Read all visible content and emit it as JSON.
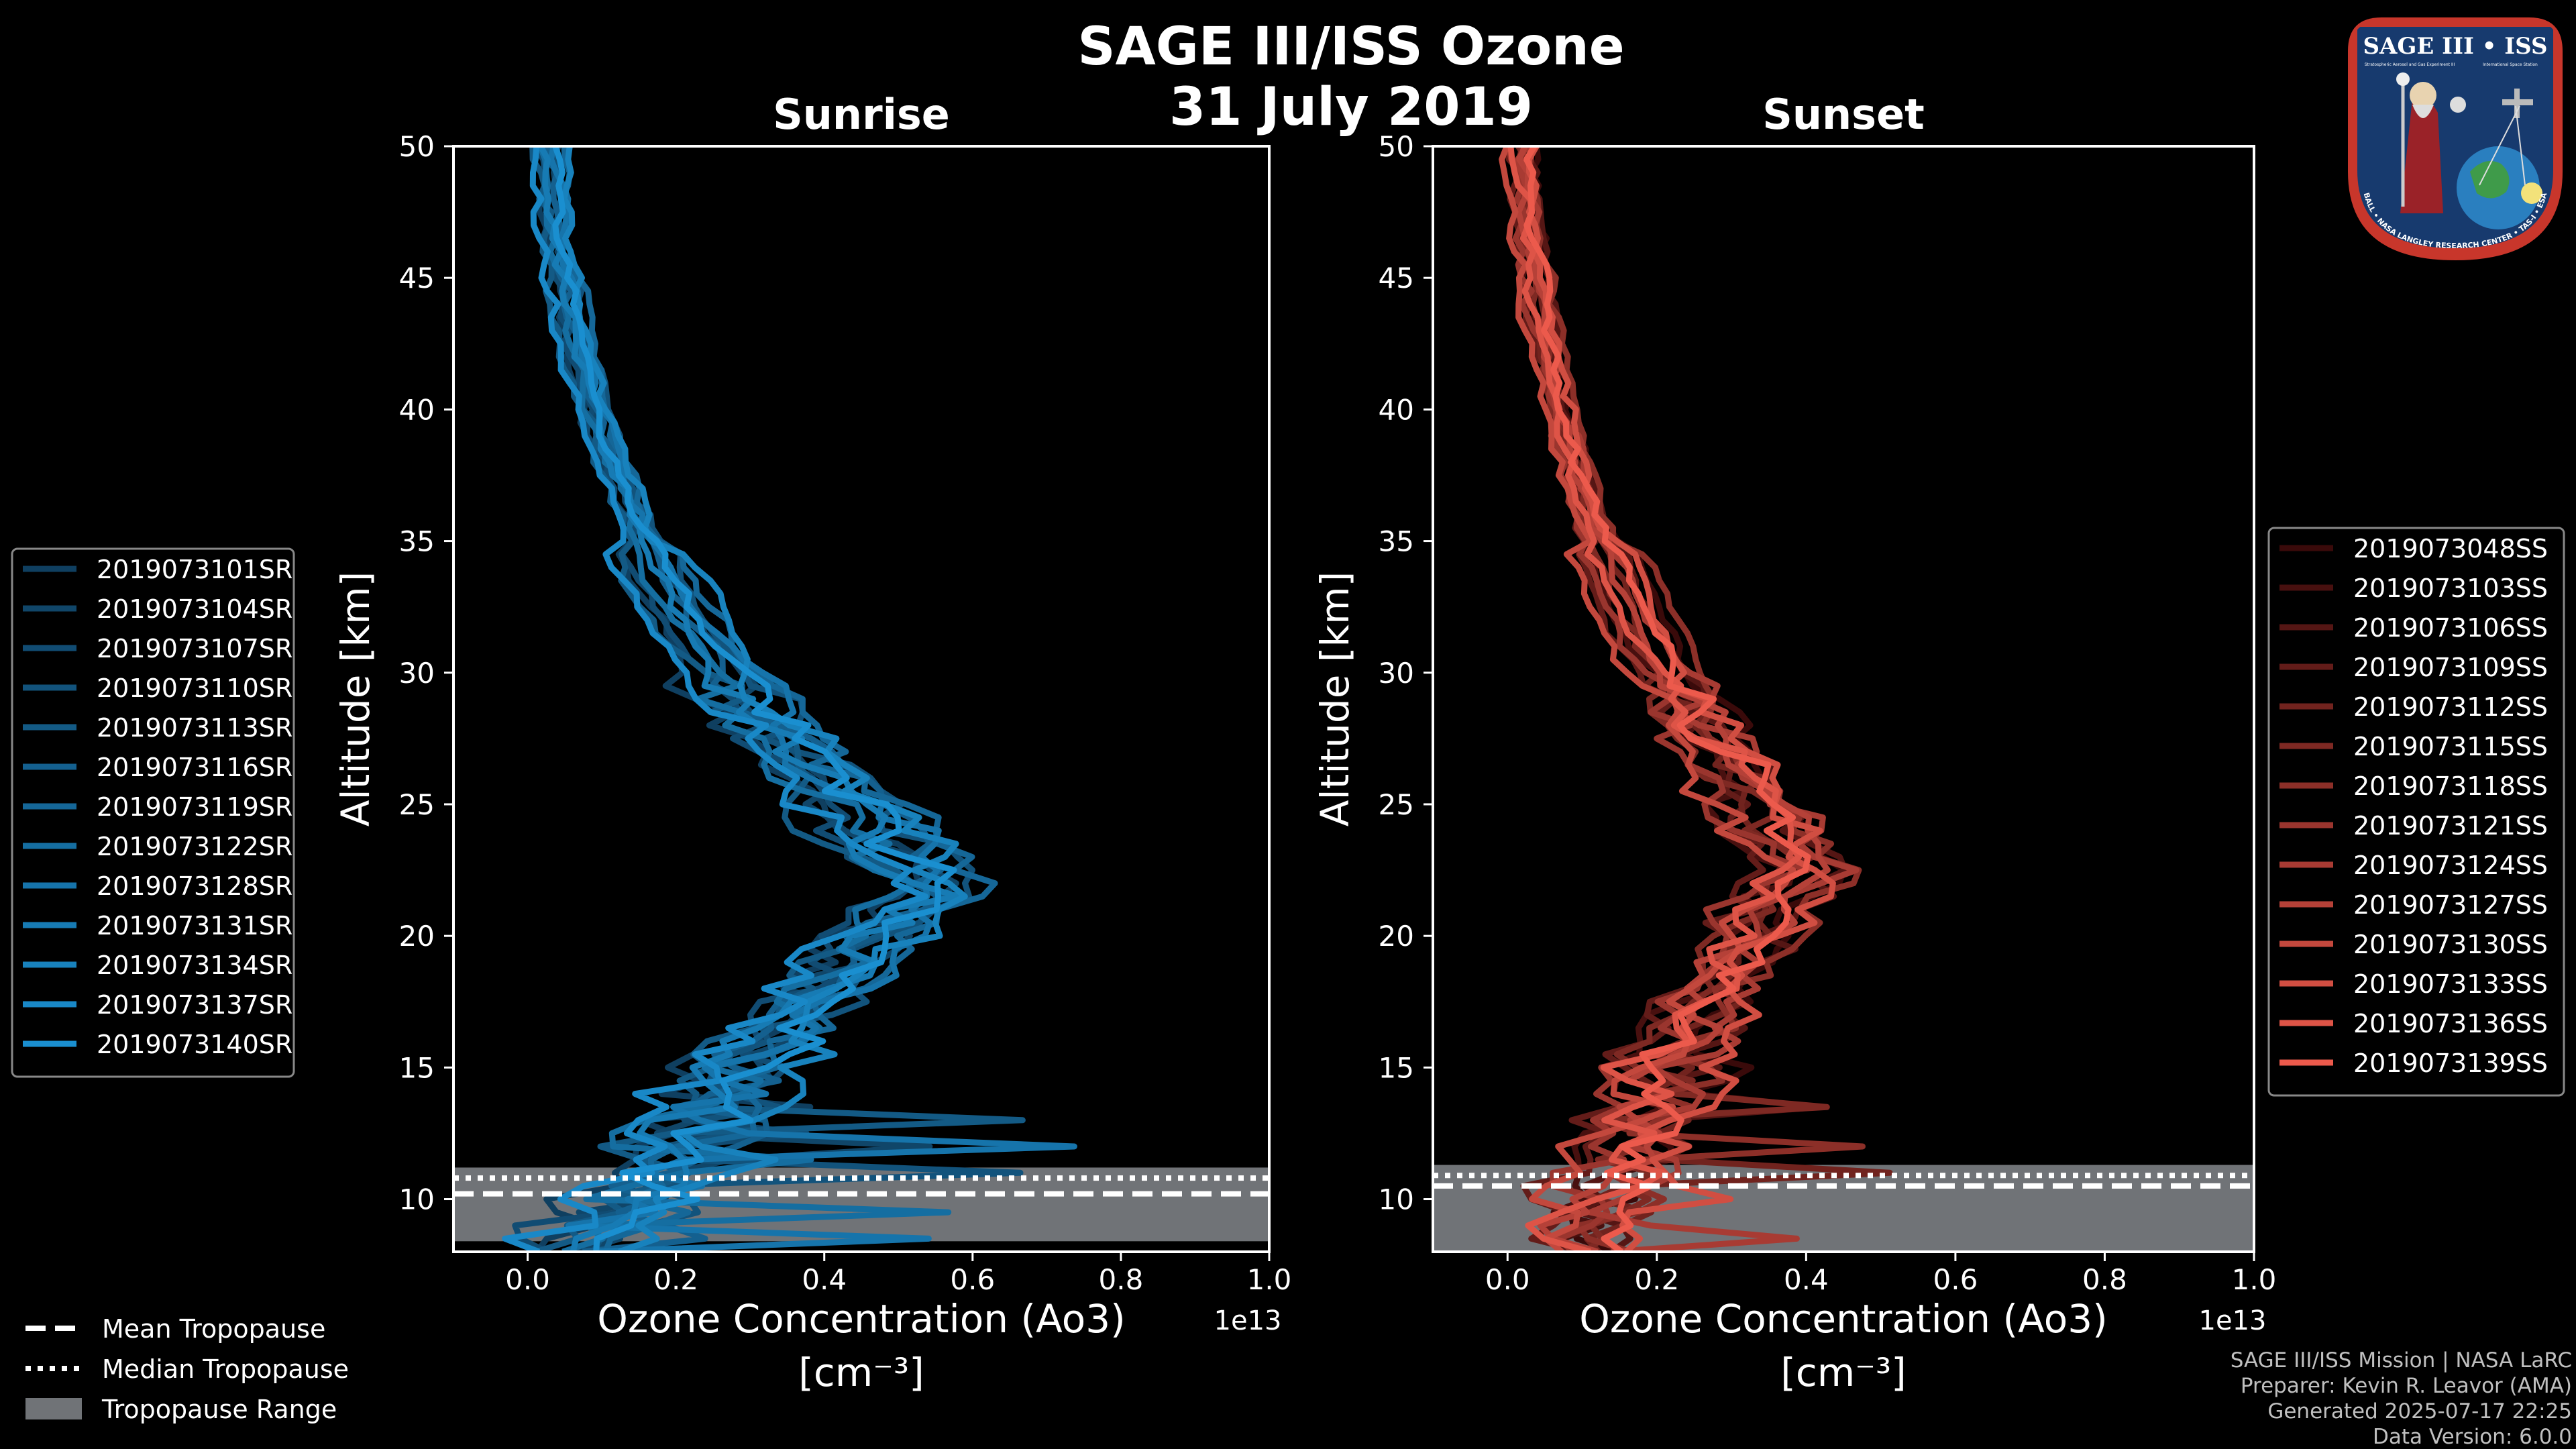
{
  "figure": {
    "title_line1": "SAGE III/ISS Ozone",
    "title_line2": "31 July 2019",
    "footer_lines": [
      "SAGE III/ISS Mission | NASA LaRC",
      "Preparer: Kevin R. Leavor (AMA)",
      "Generated 2025-07-17 22:25",
      "Data Version: 6.0.0"
    ],
    "bottom_legend": [
      {
        "label": "Mean Tropopause",
        "style": "dashed"
      },
      {
        "label": "Median Tropopause",
        "style": "dotted"
      },
      {
        "label": "Tropopause Range",
        "style": "patch"
      }
    ],
    "logo": {
      "top_text": "SAGE III • ISS",
      "sub_text_left": "Stratospheric Aerosol and Gas Experiment III",
      "sub_text_right": "International Space Station",
      "ring_text": "BALL • NASA LANGLEY RESEARCH CENTER • TAS-I • ESA"
    }
  },
  "chart_data": [
    {
      "type": "line",
      "title": "Sunrise",
      "xlabel_line1": "Ozone Concentration (Ao3)",
      "xlabel_line2": "[cm⁻³]",
      "ylabel": "Altitude [km]",
      "xlim": [
        -0.1,
        1.0
      ],
      "ylim": [
        8,
        50
      ],
      "x_scale_label": "1e13",
      "x_ticks": [
        "0.0",
        "0.2",
        "0.4",
        "0.6",
        "0.8",
        "1.0"
      ],
      "y_ticks": [
        "10",
        "15",
        "20",
        "25",
        "30",
        "35",
        "40",
        "45",
        "50"
      ],
      "tropopause": {
        "mean": 10.2,
        "median": 10.8,
        "range": [
          8.4,
          11.2
        ]
      },
      "color_dark": "#0f3f60",
      "color_light": "#1a8fd0",
      "series": [
        {
          "name": "2019073101SR",
          "shift": -0.04
        },
        {
          "name": "2019073104SR",
          "shift": 0.01
        },
        {
          "name": "2019073107SR",
          "shift": -0.03
        },
        {
          "name": "2019073110SR",
          "shift": 0.03
        },
        {
          "name": "2019073113SR",
          "shift": -0.05
        },
        {
          "name": "2019073116SR",
          "shift": 0.0
        },
        {
          "name": "2019073119SR",
          "shift": 0.04
        },
        {
          "name": "2019073122SR",
          "shift": -0.02
        },
        {
          "name": "2019073128SR",
          "shift": 0.02
        },
        {
          "name": "2019073131SR",
          "shift": -0.01
        },
        {
          "name": "2019073134SR",
          "shift": 0.05
        },
        {
          "name": "2019073137SR",
          "shift": -0.06
        },
        {
          "name": "2019073140SR",
          "shift": 0.015
        }
      ]
    },
    {
      "type": "line",
      "title": "Sunset",
      "xlabel_line1": "Ozone Concentration (Ao3)",
      "xlabel_line2": "[cm⁻³]",
      "ylabel": "Altitude [km]",
      "xlim": [
        -0.1,
        1.0
      ],
      "ylim": [
        8,
        50
      ],
      "x_scale_label": "1e13",
      "x_ticks": [
        "0.0",
        "0.2",
        "0.4",
        "0.6",
        "0.8",
        "1.0"
      ],
      "y_ticks": [
        "10",
        "15",
        "20",
        "25",
        "30",
        "35",
        "40",
        "45",
        "50"
      ],
      "tropopause": {
        "mean": 10.5,
        "median": 10.9,
        "range": [
          8.0,
          11.3
        ]
      },
      "color_dark": "#3a0a0a",
      "color_light": "#ec5a4c",
      "series": [
        {
          "name": "2019073048SS",
          "shift": 0.04
        },
        {
          "name": "2019073103SS",
          "shift": -0.02
        },
        {
          "name": "2019073106SS",
          "shift": 0.03
        },
        {
          "name": "2019073109SS",
          "shift": -0.04
        },
        {
          "name": "2019073112SS",
          "shift": 0.01
        },
        {
          "name": "2019073115SS",
          "shift": -0.01
        },
        {
          "name": "2019073118SS",
          "shift": 0.05
        },
        {
          "name": "2019073121SS",
          "shift": -0.03
        },
        {
          "name": "2019073124SS",
          "shift": 0.02
        },
        {
          "name": "2019073127SS",
          "shift": 0.0
        },
        {
          "name": "2019073130SS",
          "shift": -0.05
        },
        {
          "name": "2019073133SS",
          "shift": 0.035
        },
        {
          "name": "2019073136SS",
          "shift": -0.015
        },
        {
          "name": "2019073139SS",
          "shift": 0.025
        }
      ]
    }
  ]
}
